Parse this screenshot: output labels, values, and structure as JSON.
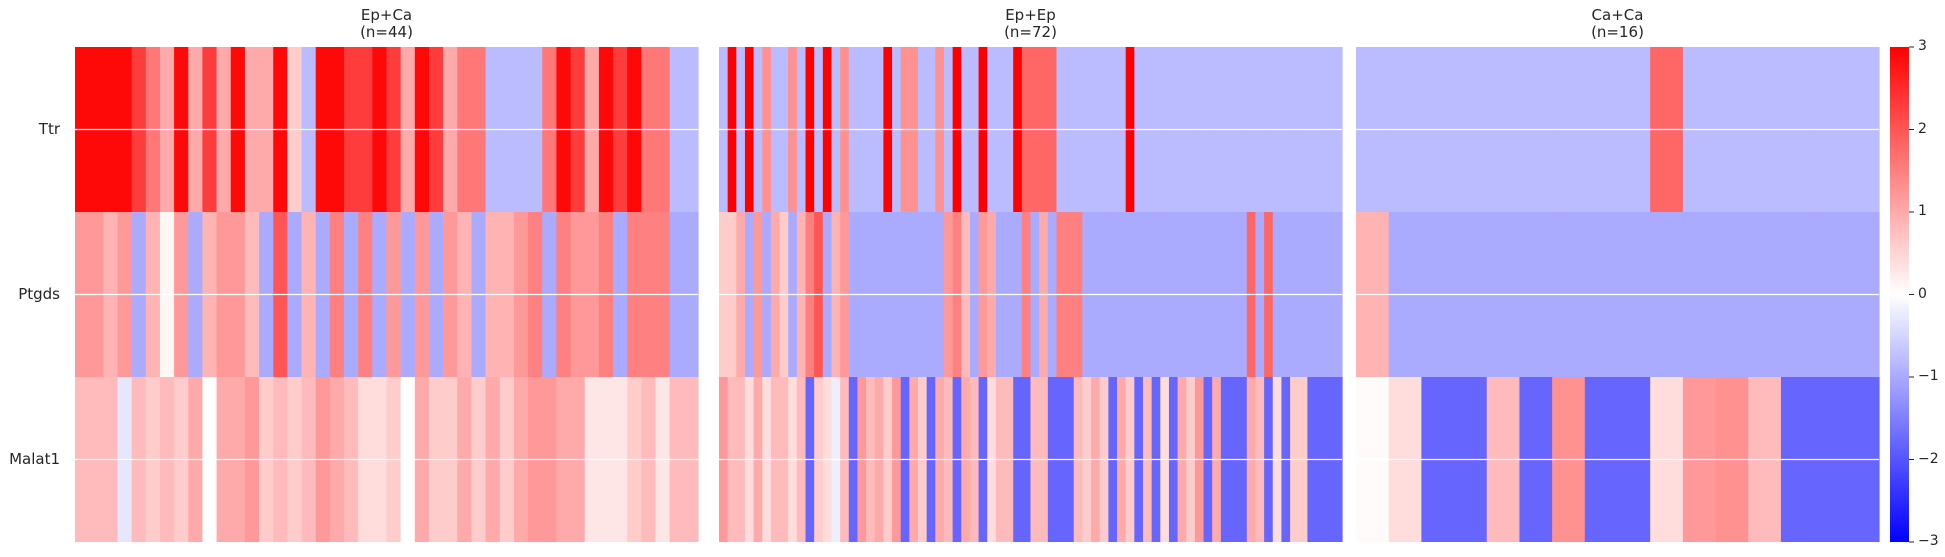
{
  "chart_data": {
    "type": "heatmap",
    "genes": [
      "Ttr",
      "Ptgds",
      "Malat1"
    ],
    "colormap": "bwr",
    "vmin": -3,
    "vmax": 3,
    "colorbar_ticks": [
      3,
      2,
      1,
      0,
      -1,
      -2,
      -3
    ],
    "row_gridlines": true,
    "panels": [
      {
        "title": "Ep+Ca",
        "subtitle": "(n=44)",
        "rows": {
          "Ttr": [
            2.9,
            2.9,
            2.9,
            2.9,
            2.3,
            1.6,
            1.0,
            2.9,
            1.0,
            2.3,
            1.0,
            2.9,
            1.0,
            1.0,
            2.9,
            0.6,
            -0.8,
            2.9,
            2.9,
            2.3,
            2.3,
            2.9,
            2.3,
            1.0,
            2.9,
            2.3,
            1.0,
            1.6,
            1.6,
            -0.8,
            -0.8,
            -0.8,
            -0.8,
            1.6,
            2.9,
            2.3,
            1.0,
            2.9,
            2.3,
            2.9,
            1.6,
            1.6,
            -0.8,
            -0.8
          ],
          "Ptgds": [
            1.2,
            1.2,
            0.9,
            1.2,
            -1.0,
            0.9,
            0.1,
            1.2,
            -1.0,
            0.9,
            1.2,
            1.2,
            0.8,
            -1.0,
            2.0,
            -1.0,
            0.9,
            -1.0,
            1.5,
            -1.0,
            1.5,
            -1.0,
            1.2,
            -1.0,
            1.2,
            -1.0,
            1.2,
            0.9,
            -1.0,
            0.9,
            0.9,
            1.2,
            1.5,
            -1.0,
            1.5,
            1.2,
            1.2,
            1.5,
            -1.0,
            1.5,
            1.5,
            1.5,
            -1.0,
            -1.0
          ],
          "Malat1": [
            0.8,
            0.8,
            0.8,
            -0.3,
            0.8,
            0.6,
            0.8,
            0.6,
            1.0,
            0.0,
            1.0,
            1.0,
            1.2,
            0.6,
            0.8,
            0.6,
            0.8,
            1.2,
            1.0,
            0.8,
            0.4,
            0.4,
            0.6,
            0.0,
            1.0,
            0.6,
            0.6,
            1.0,
            0.6,
            1.0,
            0.6,
            1.0,
            1.2,
            1.2,
            1.0,
            1.0,
            0.3,
            0.3,
            0.3,
            0.6,
            0.8,
            0.3,
            0.8,
            0.8
          ]
        }
      },
      {
        "title": "Ep+Ep",
        "subtitle": "(n=72)",
        "rows": {
          "Ttr": [
            -0.8,
            3,
            -0.8,
            3,
            -0.8,
            1.3,
            -0.8,
            -0.8,
            1.3,
            -0.8,
            3,
            -0.8,
            3,
            -0.8,
            1.3,
            -0.8,
            -0.8,
            -0.8,
            -0.8,
            3,
            -0.8,
            1.3,
            1.3,
            -0.8,
            -0.8,
            1.3,
            -0.8,
            3,
            -0.8,
            -0.8,
            3,
            -0.8,
            -0.8,
            -0.8,
            3,
            1.8,
            1.8,
            1.8,
            1.8,
            -0.8,
            -0.8,
            -0.8,
            -0.8,
            -0.8,
            -0.8,
            -0.8,
            -0.8,
            3,
            -0.8,
            -0.8,
            -0.8,
            -0.8,
            -0.8,
            -0.8,
            -0.8,
            -0.8,
            -0.8,
            -0.8,
            -0.8,
            -0.8,
            -0.8,
            -0.8,
            -0.8,
            -0.8,
            -0.8,
            -0.8,
            -0.8,
            -0.8,
            -0.8,
            -0.8,
            -0.8,
            -0.8
          ],
          "Ptgds": [
            0.6,
            0.6,
            1.0,
            -1.0,
            1.2,
            -1.0,
            1.0,
            0.6,
            -1.0,
            0.9,
            1.5,
            2.0,
            -1.0,
            0.9,
            1.2,
            -1.0,
            -1.0,
            -1.0,
            -1.0,
            -1.0,
            -1.0,
            -1.0,
            -1.0,
            -1.0,
            -1.0,
            -1.0,
            1.2,
            1.5,
            0.8,
            -1.0,
            1.2,
            1.0,
            -1.0,
            -1.0,
            -1.0,
            1.5,
            -1.0,
            1.0,
            -1.0,
            1.5,
            1.5,
            1.5,
            -1.0,
            -1.0,
            -1.0,
            -1.0,
            -1.0,
            -1.0,
            -1.0,
            -1.0,
            -1.0,
            -1.0,
            -1.0,
            -1.0,
            -1.0,
            -1.0,
            -1.0,
            -1.0,
            -1.0,
            -1.0,
            -1.0,
            1.8,
            -1.0,
            1.8,
            -1.0,
            -1.0,
            -1.0,
            -1.0,
            -1.0,
            -1.0,
            -1.0,
            -1.0
          ],
          "Malat1": [
            1.2,
            0.8,
            0.8,
            0.4,
            1.0,
            0.4,
            0.8,
            0.8,
            0.4,
            0.8,
            -1.8,
            0.6,
            0.4,
            -0.2,
            0.8,
            -1.8,
            1.2,
            0.8,
            1.0,
            0.6,
            1.2,
            -1.8,
            1.0,
            0.6,
            -1.8,
            1.0,
            0.8,
            -1.8,
            1.0,
            0.8,
            -1.8,
            0.4,
            0.8,
            0.8,
            -1.8,
            -1.8,
            0.8,
            0.8,
            -1.8,
            -1.8,
            -1.8,
            0.8,
            0.6,
            1.0,
            0.6,
            -1.8,
            1.0,
            0.6,
            -1.8,
            0.8,
            -1.8,
            0.4,
            -1.8,
            1.0,
            0.6,
            1.2,
            -1.8,
            1.0,
            -1.8,
            -1.8,
            -1.8,
            1.0,
            0.8,
            -1.8,
            0.4,
            -1.8,
            0.6,
            0.6,
            -1.8,
            -1.8,
            -1.8,
            -1.8
          ]
        }
      },
      {
        "title": "Ca+Ca",
        "subtitle": "(n=16)",
        "rows": {
          "Ttr": [
            -0.8,
            -0.8,
            -0.8,
            -0.8,
            -0.8,
            -0.8,
            -0.8,
            -0.8,
            -0.8,
            1.8,
            -0.8,
            -0.8,
            -0.8,
            -0.8,
            -0.8,
            -0.8
          ],
          "Ptgds": [
            0.9,
            -1.0,
            -1.0,
            -1.0,
            -1.0,
            -1.0,
            -1.0,
            -1.0,
            -1.0,
            -1.0,
            -1.0,
            -1.0,
            -1.0,
            -1.0,
            -1.0,
            -1.0
          ],
          "Malat1": [
            0.05,
            0.4,
            -1.8,
            -1.8,
            0.8,
            -1.8,
            1.3,
            -1.8,
            -1.8,
            0.4,
            1.2,
            1.3,
            0.8,
            -1.8,
            -1.8,
            -1.8
          ]
        }
      }
    ]
  }
}
